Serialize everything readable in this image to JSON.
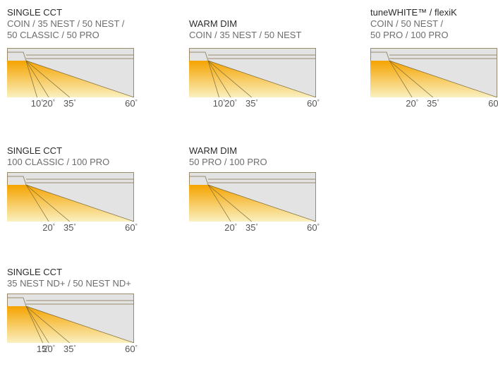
{
  "colors": {
    "frame": "#9a8a6a",
    "background": "#e3e3e4",
    "beam_top": "#f5a300",
    "beam_bottom": "#faf0c0",
    "line": "#7a6a3a"
  },
  "panels": [
    {
      "title": "SINGLE CCT",
      "subtitle": [
        "COIN / 35 NEST / 50 NEST /",
        "50 CLASSIC / 50 PRO"
      ],
      "angles": [
        {
          "v": 10,
          "label": "10"
        },
        {
          "v": 20,
          "label": "20"
        },
        {
          "v": 35,
          "label": "35"
        },
        {
          "v": 60,
          "label": "60"
        }
      ]
    },
    {
      "title": "WARM DIM",
      "subtitle": [
        "COIN / 35 NEST / 50 NEST"
      ],
      "angles": [
        {
          "v": 10,
          "label": "10"
        },
        {
          "v": 20,
          "label": "20"
        },
        {
          "v": 35,
          "label": "35"
        },
        {
          "v": 60,
          "label": "60"
        }
      ]
    },
    {
      "title": "tuneWHITE™ / flexiK",
      "subtitle": [
        "COIN / 50 NEST /",
        "50 PRO / 100 PRO"
      ],
      "angles": [
        {
          "v": 20,
          "label": "20"
        },
        {
          "v": 35,
          "label": "35"
        },
        {
          "v": 60,
          "label": "60"
        }
      ]
    },
    {
      "title": "SINGLE CCT",
      "subtitle": [
        "100 CLASSIC / 100 PRO"
      ],
      "angles": [
        {
          "v": 20,
          "label": "20"
        },
        {
          "v": 35,
          "label": "35"
        },
        {
          "v": 60,
          "label": "60"
        }
      ]
    },
    {
      "title": "WARM DIM",
      "subtitle": [
        "50 PRO / 100 PRO"
      ],
      "angles": [
        {
          "v": 20,
          "label": "20"
        },
        {
          "v": 35,
          "label": "35"
        },
        {
          "v": 60,
          "label": "60"
        }
      ]
    },
    {
      "title": "SINGLE CCT",
      "subtitle": [
        "35 NEST ND+ / 50 NEST ND+"
      ],
      "angles": [
        {
          "v": 15,
          "label": "15"
        },
        {
          "v": 20,
          "label": "20"
        },
        {
          "v": 35,
          "label": "35"
        },
        {
          "v": 60,
          "label": "60"
        }
      ]
    }
  ],
  "degree_symbol": "°"
}
